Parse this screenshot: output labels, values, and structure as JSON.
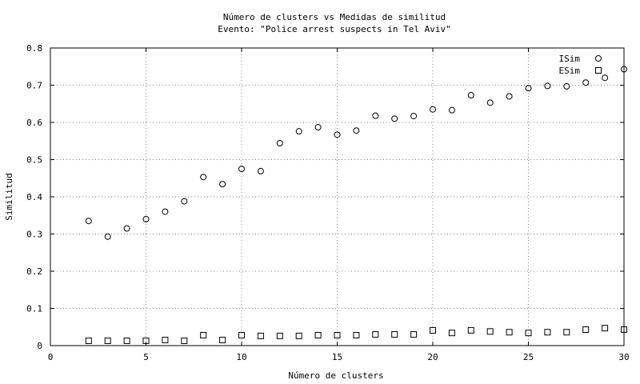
{
  "chart_data": {
    "type": "scatter",
    "title": "Número de clusters vs Medidas de similitud",
    "subtitle": "Evento: \"Police arrest suspects in Tel Aviv\"",
    "xlabel": "Número de clusters",
    "ylabel": "Similitud",
    "xlim": [
      0,
      30
    ],
    "ylim": [
      0,
      0.8
    ],
    "xticks": [
      "0",
      "5",
      "10",
      "15",
      "20",
      "25",
      "30"
    ],
    "yticks": [
      "0",
      "0.1",
      "0.2",
      "0.3",
      "0.4",
      "0.5",
      "0.6",
      "0.7",
      "0.8"
    ],
    "grid": true,
    "legend_position": "top-right",
    "series": [
      {
        "name": "ISim",
        "marker": "circle",
        "x": [
          2,
          3,
          4,
          5,
          6,
          7,
          8,
          9,
          10,
          11,
          12,
          13,
          14,
          15,
          16,
          17,
          18,
          19,
          20,
          21,
          22,
          23,
          24,
          25,
          26,
          27,
          28,
          29,
          30
        ],
        "y": [
          0.335,
          0.293,
          0.315,
          0.34,
          0.36,
          0.388,
          0.453,
          0.434,
          0.475,
          0.469,
          0.544,
          0.576,
          0.587,
          0.567,
          0.578,
          0.618,
          0.61,
          0.617,
          0.635,
          0.633,
          0.673,
          0.653,
          0.67,
          0.692,
          0.698,
          0.697,
          0.707,
          0.72,
          0.743
        ]
      },
      {
        "name": "ESim",
        "marker": "square",
        "x": [
          2,
          3,
          4,
          5,
          6,
          7,
          8,
          9,
          10,
          11,
          12,
          13,
          14,
          15,
          16,
          17,
          18,
          19,
          20,
          21,
          22,
          23,
          24,
          25,
          26,
          27,
          28,
          29,
          30
        ],
        "y": [
          0.013,
          0.013,
          0.013,
          0.013,
          0.015,
          0.013,
          0.028,
          0.015,
          0.028,
          0.026,
          0.026,
          0.026,
          0.028,
          0.028,
          0.028,
          0.03,
          0.03,
          0.03,
          0.041,
          0.034,
          0.041,
          0.038,
          0.036,
          0.034,
          0.036,
          0.036,
          0.043,
          0.047,
          0.043
        ]
      }
    ]
  }
}
